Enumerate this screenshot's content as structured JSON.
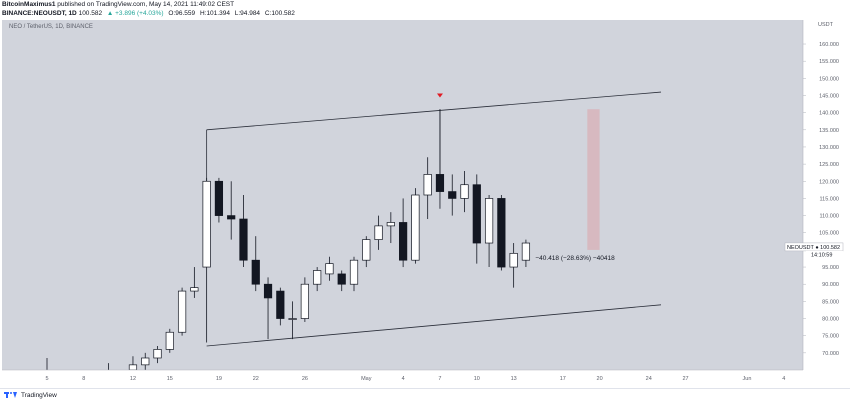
{
  "header": {
    "author": "BitcoinMaximus1",
    "published": "published on TradingView.com, May 14, 2021 11:49:02 CEST",
    "symbol_line": "BINANCE:NEOUSDT, 1D",
    "last": "100.582",
    "change": "▲ +3.896 (+4.03%)",
    "open": "O:96.559",
    "high": "H:101.394",
    "low": "L:94.984",
    "close": "C:100.582"
  },
  "symbol_title": "NEO / TetherUS, 1D, BINANCE",
  "footer": {
    "brand": "TradingView"
  },
  "colors": {
    "up": "#ffffff",
    "down": "#131722",
    "wick": "#131722",
    "channel": "#2a2e39",
    "target_box": "#d8b4bb",
    "marker": "#e01b24"
  },
  "chart_data": {
    "type": "candlestick",
    "currency": "USDT",
    "ylim": [
      65,
      167
    ],
    "y_ticks": [
      70,
      75,
      80,
      85,
      90,
      95,
      100,
      105,
      110,
      115,
      120,
      125,
      130,
      135,
      140,
      145,
      150,
      155,
      160
    ],
    "y_tick_labels": [
      "70.000",
      "75.000",
      "80.000",
      "85.000",
      "90.000",
      "95.000",
      "100.000",
      "105.000",
      "110.000",
      "115.000",
      "120.000",
      "125.000",
      "130.000",
      "135.000",
      "140.000",
      "145.000",
      "150.000",
      "155.000",
      "160.000"
    ],
    "x_ticks": [
      {
        "label": "5",
        "day": 5
      },
      {
        "label": "8",
        "day": 8
      },
      {
        "label": "12",
        "day": 12
      },
      {
        "label": "15",
        "day": 15
      },
      {
        "label": "19",
        "day": 19
      },
      {
        "label": "22",
        "day": 22
      },
      {
        "label": "26",
        "day": 26
      },
      {
        "label": "May",
        "day": 31
      },
      {
        "label": "4",
        "day": 34
      },
      {
        "label": "7",
        "day": 37
      },
      {
        "label": "10",
        "day": 40
      },
      {
        "label": "13",
        "day": 43
      },
      {
        "label": "17",
        "day": 47
      },
      {
        "label": "20",
        "day": 50
      },
      {
        "label": "24",
        "day": 54
      },
      {
        "label": "27",
        "day": 57
      },
      {
        "label": "Jun",
        "day": 62
      },
      {
        "label": "4",
        "day": 65
      }
    ],
    "candles": [
      {
        "day": 5,
        "o": 63,
        "h": 68.5,
        "l": 62,
        "c": 64
      },
      {
        "day": 10,
        "o": 63,
        "h": 67,
        "l": 62,
        "c": 64.5
      },
      {
        "day": 12,
        "o": 65,
        "h": 69,
        "l": 64,
        "c": 66.5
      },
      {
        "day": 13,
        "o": 66.5,
        "h": 70,
        "l": 65,
        "c": 68.5
      },
      {
        "day": 14,
        "o": 68.5,
        "h": 72,
        "l": 67,
        "c": 71
      },
      {
        "day": 15,
        "o": 71,
        "h": 77,
        "l": 70,
        "c": 76
      },
      {
        "day": 16,
        "o": 76,
        "h": 89,
        "l": 75,
        "c": 88
      },
      {
        "day": 17,
        "o": 88,
        "h": 95,
        "l": 86,
        "c": 89
      },
      {
        "day": 18,
        "o": 95,
        "h": 121,
        "l": 73,
        "c": 120
      },
      {
        "day": 19,
        "o": 120,
        "h": 121,
        "l": 108,
        "c": 110
      },
      {
        "day": 20,
        "o": 110,
        "h": 120,
        "l": 103,
        "c": 109
      },
      {
        "day": 21,
        "o": 109,
        "h": 116,
        "l": 95,
        "c": 97
      },
      {
        "day": 22,
        "o": 97,
        "h": 104,
        "l": 88,
        "c": 90
      },
      {
        "day": 23,
        "o": 90,
        "h": 92,
        "l": 74,
        "c": 86
      },
      {
        "day": 24,
        "o": 88,
        "h": 89,
        "l": 78,
        "c": 80
      },
      {
        "day": 25,
        "o": 80,
        "h": 85,
        "l": 74,
        "c": 80
      },
      {
        "day": 26,
        "o": 80,
        "h": 92,
        "l": 79,
        "c": 90
      },
      {
        "day": 27,
        "o": 90,
        "h": 95,
        "l": 88,
        "c": 94
      },
      {
        "day": 28,
        "o": 93,
        "h": 98,
        "l": 91,
        "c": 96
      },
      {
        "day": 29,
        "o": 93,
        "h": 94,
        "l": 88,
        "c": 90
      },
      {
        "day": 30,
        "o": 90,
        "h": 98,
        "l": 88,
        "c": 97
      },
      {
        "day": 31,
        "o": 97,
        "h": 104,
        "l": 95,
        "c": 103
      },
      {
        "day": 32,
        "o": 103,
        "h": 110,
        "l": 100,
        "c": 107
      },
      {
        "day": 33,
        "o": 107,
        "h": 111,
        "l": 102,
        "c": 108
      },
      {
        "day": 34,
        "o": 108,
        "h": 115,
        "l": 95,
        "c": 97
      },
      {
        "day": 35,
        "o": 97,
        "h": 118,
        "l": 96,
        "c": 116
      },
      {
        "day": 36,
        "o": 116,
        "h": 127,
        "l": 109,
        "c": 122
      },
      {
        "day": 37,
        "o": 122,
        "h": 141,
        "l": 112,
        "c": 117
      },
      {
        "day": 38,
        "o": 117,
        "h": 122,
        "l": 110,
        "c": 115
      },
      {
        "day": 39,
        "o": 115,
        "h": 123,
        "l": 111,
        "c": 119
      },
      {
        "day": 40,
        "o": 119,
        "h": 122,
        "l": 96,
        "c": 102
      },
      {
        "day": 41,
        "o": 102,
        "h": 116,
        "l": 95,
        "c": 115
      },
      {
        "day": 42,
        "o": 115,
        "h": 116,
        "l": 94,
        "c": 95
      },
      {
        "day": 43,
        "o": 95,
        "h": 102,
        "l": 89,
        "c": 99
      },
      {
        "day": 44,
        "o": 97,
        "h": 103,
        "l": 95,
        "c": 102
      }
    ],
    "channel_upper": [
      {
        "day": 18,
        "price": 135
      },
      {
        "day": 37,
        "price": 141
      },
      {
        "day": 55,
        "price": 146
      }
    ],
    "channel_lower": [
      {
        "day": 18,
        "price": 72
      },
      {
        "day": 55,
        "price": 84
      }
    ],
    "channel_upper_left_leg": {
      "day": 18,
      "from": 120,
      "to": 135
    },
    "channel_upper_right_leg": {
      "day": 37,
      "from": 117,
      "to": 141
    },
    "marker_day": 37,
    "marker_price": 145,
    "target_box": {
      "day_from": 49,
      "day_to": 50,
      "price_from": 100,
      "price_to": 141
    },
    "measure_label": "−40.418 (−28.63%) −40418",
    "measure_day": 48,
    "measure_price": 97,
    "price_label": {
      "symbol": "NEOUSDT",
      "value": "100.582",
      "countdown": "14:10:59"
    }
  }
}
